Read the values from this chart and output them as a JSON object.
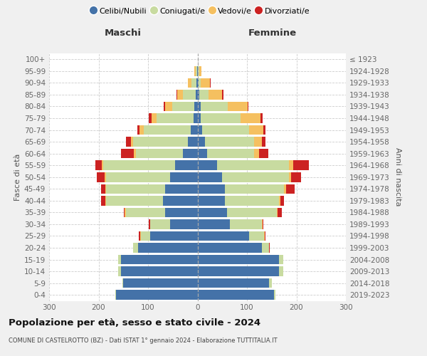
{
  "age_groups": [
    "0-4",
    "5-9",
    "10-14",
    "15-19",
    "20-24",
    "25-29",
    "30-34",
    "35-39",
    "40-44",
    "45-49",
    "50-54",
    "55-59",
    "60-64",
    "65-69",
    "70-74",
    "75-79",
    "80-84",
    "85-89",
    "90-94",
    "95-99",
    "100+"
  ],
  "birth_years": [
    "2019-2023",
    "2014-2018",
    "2009-2013",
    "2004-2008",
    "1999-2003",
    "1994-1998",
    "1989-1993",
    "1984-1988",
    "1979-1983",
    "1974-1978",
    "1969-1973",
    "1964-1968",
    "1959-1963",
    "1954-1958",
    "1949-1953",
    "1944-1948",
    "1939-1943",
    "1934-1938",
    "1929-1933",
    "1924-1928",
    "≤ 1923"
  ],
  "male_celibi": [
    165,
    150,
    155,
    155,
    120,
    95,
    55,
    65,
    70,
    65,
    55,
    45,
    30,
    20,
    14,
    8,
    6,
    4,
    2,
    1,
    0
  ],
  "male_coniugati": [
    1,
    2,
    5,
    5,
    10,
    20,
    40,
    80,
    115,
    120,
    130,
    145,
    95,
    110,
    95,
    75,
    45,
    25,
    10,
    3,
    0
  ],
  "male_vedovi": [
    0,
    0,
    0,
    0,
    0,
    1,
    1,
    2,
    2,
    2,
    3,
    4,
    4,
    5,
    8,
    10,
    15,
    12,
    8,
    2,
    0
  ],
  "male_divorziati": [
    0,
    0,
    0,
    0,
    0,
    2,
    2,
    2,
    8,
    8,
    15,
    12,
    25,
    10,
    5,
    5,
    2,
    2,
    0,
    0,
    0
  ],
  "female_nubili": [
    155,
    145,
    165,
    165,
    130,
    105,
    65,
    60,
    55,
    55,
    50,
    40,
    20,
    15,
    10,
    7,
    6,
    4,
    2,
    1,
    0
  ],
  "female_coniugate": [
    2,
    5,
    9,
    8,
    15,
    30,
    65,
    100,
    110,
    120,
    135,
    145,
    95,
    100,
    95,
    80,
    55,
    18,
    5,
    2,
    0
  ],
  "female_vedove": [
    0,
    0,
    0,
    0,
    0,
    1,
    1,
    2,
    2,
    4,
    4,
    8,
    10,
    15,
    28,
    40,
    40,
    28,
    18,
    5,
    0
  ],
  "female_divorziate": [
    0,
    0,
    0,
    0,
    1,
    2,
    2,
    8,
    8,
    18,
    20,
    32,
    18,
    8,
    5,
    4,
    2,
    2,
    1,
    0,
    0
  ],
  "colors_celibi": "#4472a8",
  "colors_coniugati": "#c8dba0",
  "colors_vedovi": "#f5c060",
  "colors_divorziati": "#cc2222",
  "title": "Popolazione per età, sesso e stato civile - 2024",
  "subtitle": "COMUNE DI CASTELROTTO (BZ) - Dati ISTAT 1° gennaio 2024 - Elaborazione TUTTITALIA.IT",
  "legend_labels": [
    "Celibi/Nubili",
    "Coniugati/e",
    "Vedovi/e",
    "Divorziati/e"
  ],
  "bg_color": "#f0f0f0",
  "plot_bg": "#ffffff",
  "xlim": 300
}
